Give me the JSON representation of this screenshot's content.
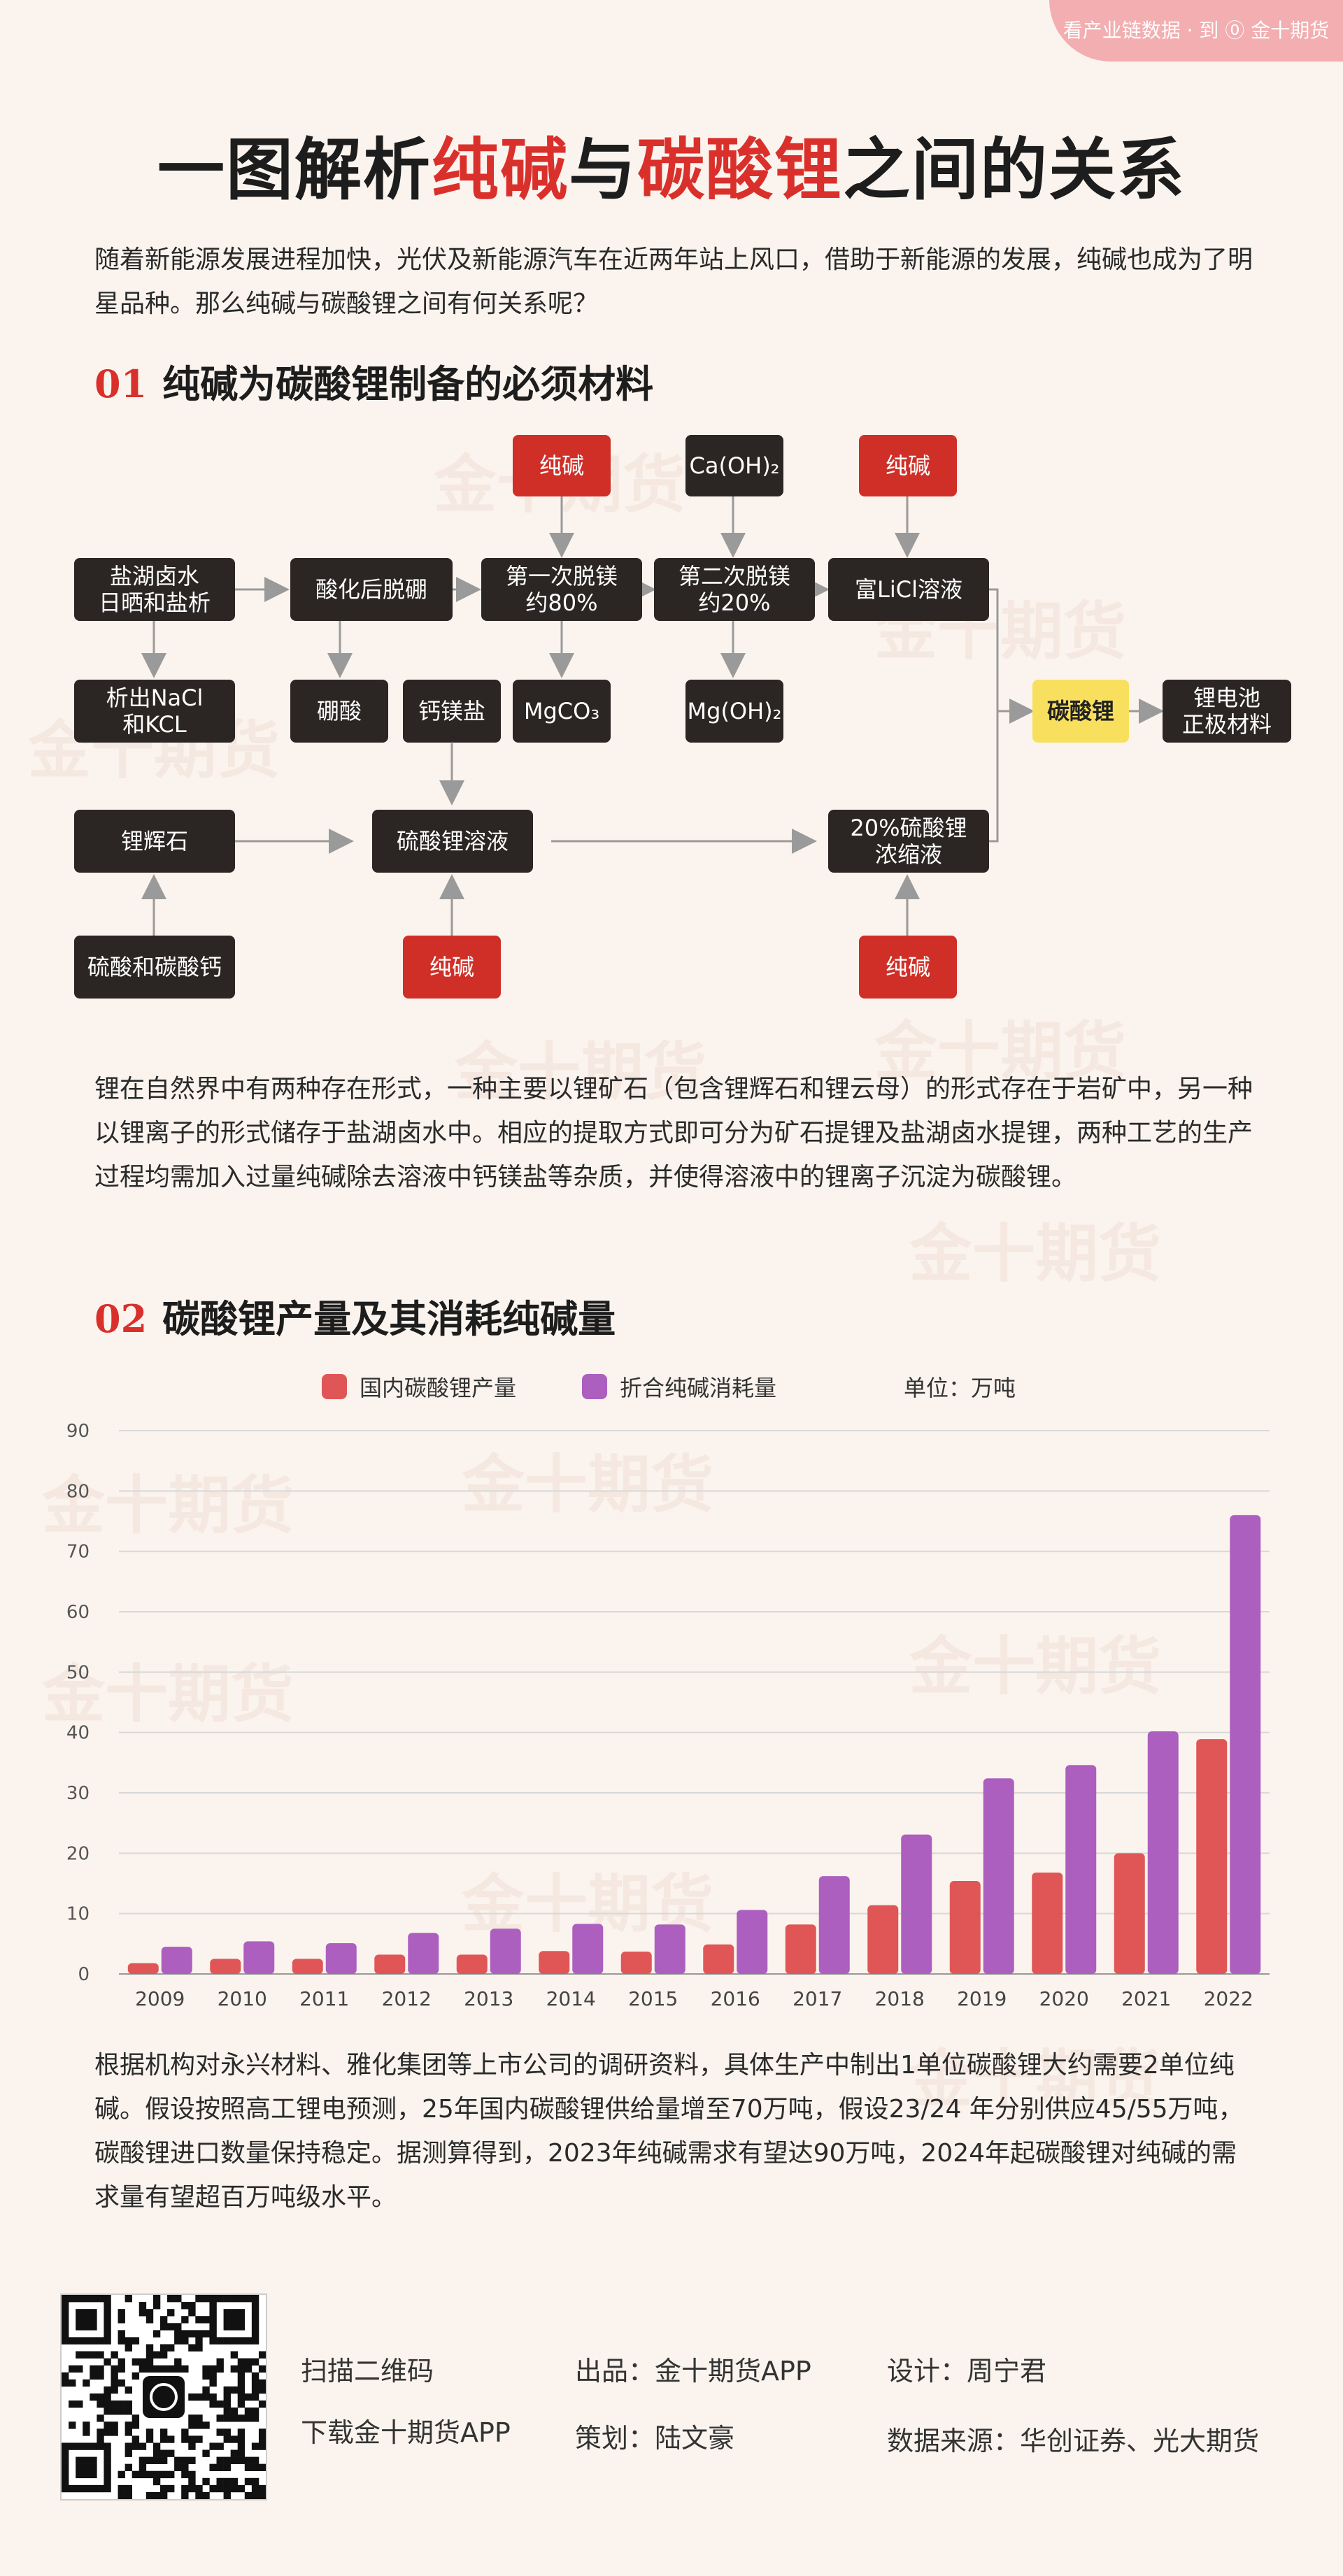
{
  "banner": {
    "text": "看产业链数据 · 到 ⓪ 金十期货"
  },
  "header": {
    "title_1": "一图解析",
    "title_red_1": "纯碱",
    "title_2": "与",
    "title_red_2": "碳酸锂",
    "title_3": "之间的关系"
  },
  "intro": "随着新能源发展进程加快，光伏及新能源汽车在近两年站上风口，借助于新能源的发展，纯碱也成为了明星品种。那么纯碱与碳酸锂之间有何关系呢？",
  "section1": {
    "num": "01",
    "title": "纯碱为碳酸锂制备的必须材料"
  },
  "diagram": {
    "salt_lake": "盐湖卤水\n日晒和盐析",
    "nacl": "析出NaCl\n和KCL",
    "acid_deboron": "酸化后脱硼",
    "boric": "硼酸",
    "ca_mg_salt": "钙镁盐",
    "demg1": "第一次脱镁\n约80%",
    "mgco3": "MgCO₃",
    "soda_top1": "纯碱",
    "caoh2": "Ca(OH)₂",
    "demg2": "第二次脱镁\n约20%",
    "mgoh2": "Mg(OH)₂",
    "soda_top2": "纯碱",
    "licl": "富LiCl溶液",
    "li_carbonate": "碳酸锂",
    "battery": "锂电池\n正极材料",
    "spodumene": "锂辉石",
    "acids": "硫酸和碳酸钙",
    "li_sulfate": "硫酸锂溶液",
    "soda_bottom1": "纯碱",
    "concentrate": "20%硫酸锂\n浓缩液",
    "soda_bottom2": "纯碱"
  },
  "para2": "锂在自然界中有两种存在形式，一种主要以锂矿石（包含锂辉石和锂云母）的形式存在于岩矿中，另一种以锂离子的形式储存于盐湖卤水中。相应的提取方式即可分为矿石提锂及盐湖卤水提锂，两种工艺的生产过程均需加入过量纯碱除去溶液中钙镁盐等杂质，并使得溶液中的锂离子沉淀为碳酸锂。",
  "section2": {
    "num": "02",
    "title": "碳酸锂产量及其消耗纯碱量"
  },
  "chart_data": {
    "type": "bar",
    "unit_label": "单位：万吨",
    "categories": [
      "2009",
      "2010",
      "2011",
      "2012",
      "2013",
      "2014",
      "2015",
      "2016",
      "2017",
      "2018",
      "2019",
      "2020",
      "2021",
      "2022"
    ],
    "series": [
      {
        "name": "国内碳酸锂产量",
        "color": "#e05656",
        "values": [
          1.8,
          2.5,
          2.5,
          3.2,
          3.2,
          3.8,
          3.7,
          4.9,
          8.2,
          11.4,
          15.4,
          16.8,
          20.0,
          38.9
        ]
      },
      {
        "name": "折合纯碱消耗量",
        "color": "#ac5fbf",
        "values": [
          4.5,
          5.4,
          5.1,
          6.8,
          7.5,
          8.3,
          8.2,
          10.6,
          16.2,
          23.1,
          32.4,
          34.6,
          40.2,
          76.0
        ]
      }
    ],
    "ylim": [
      0,
      90
    ],
    "yticks": [
      0,
      10,
      20,
      30,
      40,
      50,
      60,
      70,
      80,
      90
    ]
  },
  "para3": "根据机构对永兴材料、雅化集团等上市公司的调研资料，具体生产中制出1单位碳酸锂大约需要2单位纯碱。假设按照高工锂电预测，25年国内碳酸锂供给量增至70万吨，假设23/24 年分别供应45/55万吨，碳酸锂进口数量保持稳定。据测算得到，2023年纯碱需求有望达90万吨，2024年起碳酸锂对纯碱的需求量有望超百万吨级水平。",
  "footer": {
    "scan": "扫描二维码",
    "download": "下载金十期货APP",
    "producer": "出品：金十期货APP",
    "planner": "策划：陆文豪",
    "designer": "设计：周宁君",
    "source": "数据来源：华创证券、光大期货"
  },
  "watermark": "金十期货"
}
